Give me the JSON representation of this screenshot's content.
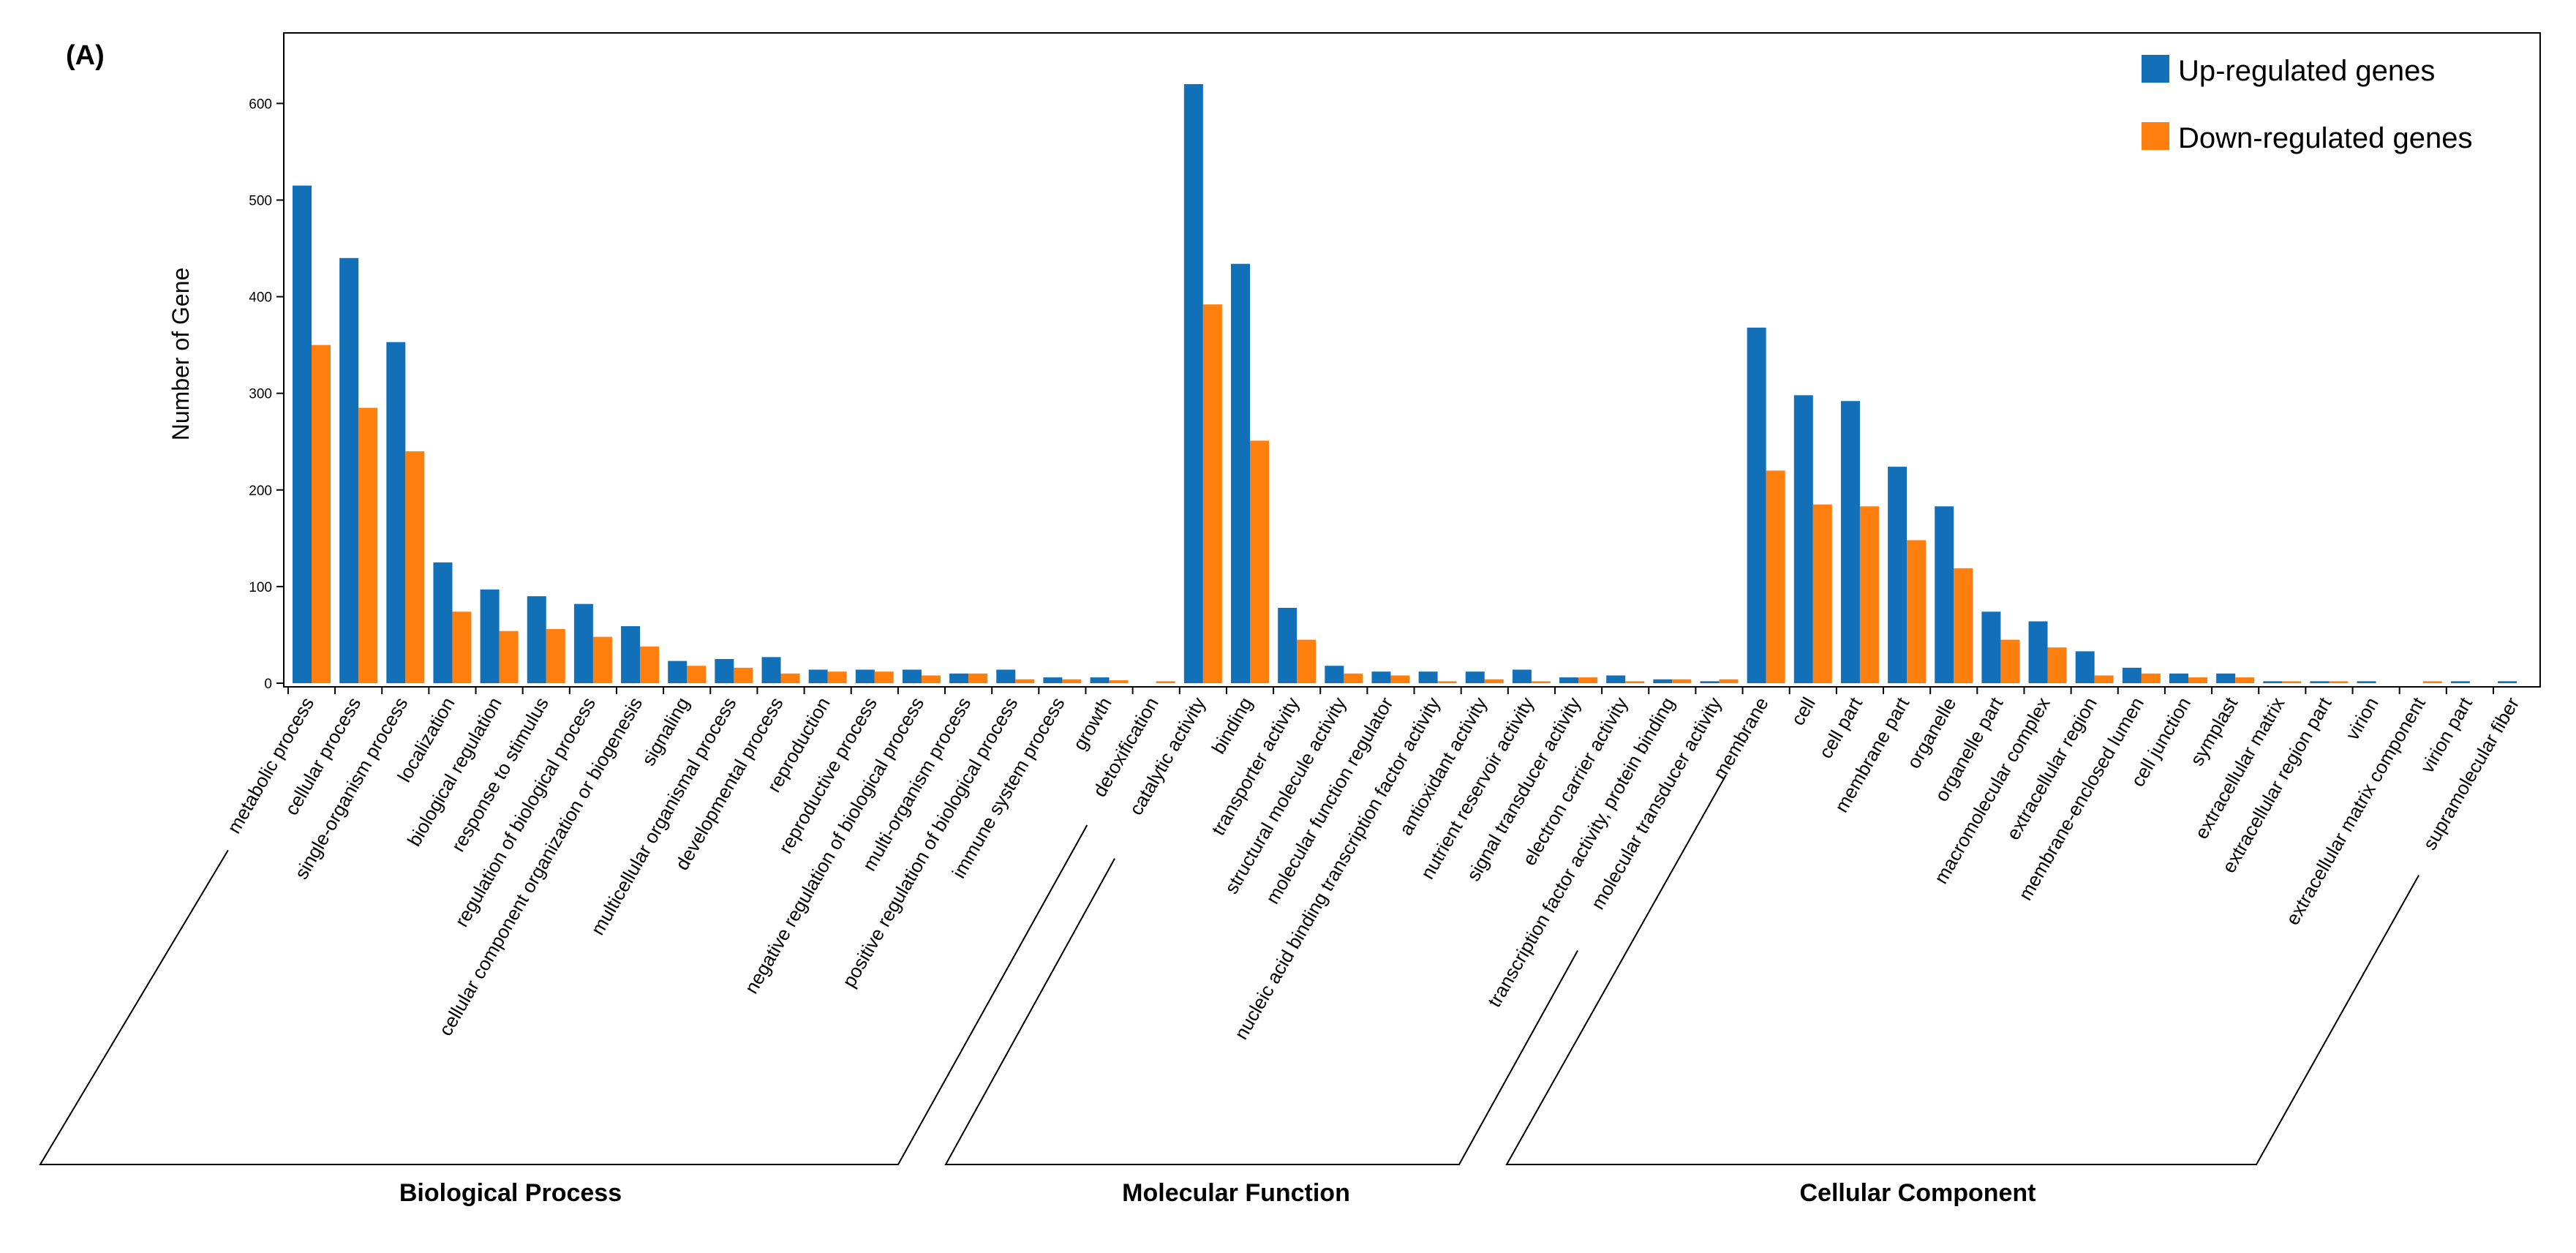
{
  "chart_data": {
    "type": "bar",
    "panel_label": "(A)",
    "ylabel": "Number of Gene",
    "ylim": [
      0,
      680
    ],
    "yticks": [
      0,
      100,
      200,
      300,
      400,
      500,
      600
    ],
    "legend_position": "top-right",
    "colors": {
      "up": "#1170b8",
      "down": "#ff7f0e",
      "axis": "#000000"
    },
    "series": [
      {
        "key": "up",
        "name": "Up-regulated genes"
      },
      {
        "key": "down",
        "name": "Down-regulated genes"
      }
    ],
    "groups": [
      {
        "name": "Biological Process",
        "categories": [
          "metabolic process",
          "cellular process",
          "single-organism process",
          "localization",
          "biological regulation",
          "response to stimulus",
          "regulation of biological process",
          "cellular component organization or biogenesis",
          "signaling",
          "multicellular organismal process",
          "developmental process",
          "reproduction",
          "reproductive process",
          "negative regulation of biological process",
          "multi-organism process",
          "positive regulation of biological process",
          "immune system process",
          "growth",
          "detoxification"
        ],
        "up": [
          515,
          440,
          353,
          125,
          97,
          90,
          82,
          59,
          23,
          25,
          27,
          14,
          14,
          14,
          10,
          14,
          6,
          6,
          0
        ],
        "down": [
          350,
          285,
          240,
          74,
          54,
          56,
          48,
          38,
          18,
          16,
          10,
          12,
          12,
          8,
          10,
          4,
          4,
          3,
          2
        ]
      },
      {
        "name": "Molecular Function",
        "categories": [
          "catalytic activity",
          "binding",
          "transporter activity",
          "structural molecule activity",
          "molecular function regulator",
          "nucleic acid binding transcription factor activity",
          "antioxidant activity",
          "nutrient reservoir activity",
          "signal transducer activity",
          "electron carrier activity",
          "transcription factor activity, protein binding",
          "molecular transducer activity"
        ],
        "up": [
          620,
          434,
          78,
          18,
          12,
          12,
          12,
          14,
          6,
          8,
          4,
          2
        ],
        "down": [
          392,
          251,
          45,
          10,
          8,
          2,
          4,
          2,
          6,
          2,
          4,
          4
        ]
      },
      {
        "name": "Cellular Component",
        "categories": [
          "membrane",
          "cell",
          "cell part",
          "membrane part",
          "organelle",
          "organelle part",
          "macromolecular complex",
          "extracellular region",
          "membrane-enclosed lumen",
          "cell junction",
          "symplast",
          "extracellular matrix",
          "extracellular region part",
          "virion",
          "extracellular matrix component",
          "virion part",
          "supramolecular fiber"
        ],
        "up": [
          368,
          298,
          292,
          224,
          183,
          74,
          64,
          33,
          16,
          10,
          10,
          2,
          2,
          2,
          0,
          2,
          2
        ],
        "down": [
          220,
          185,
          183,
          148,
          119,
          45,
          37,
          8,
          10,
          6,
          6,
          2,
          2,
          0,
          2,
          0,
          0
        ]
      }
    ]
  }
}
